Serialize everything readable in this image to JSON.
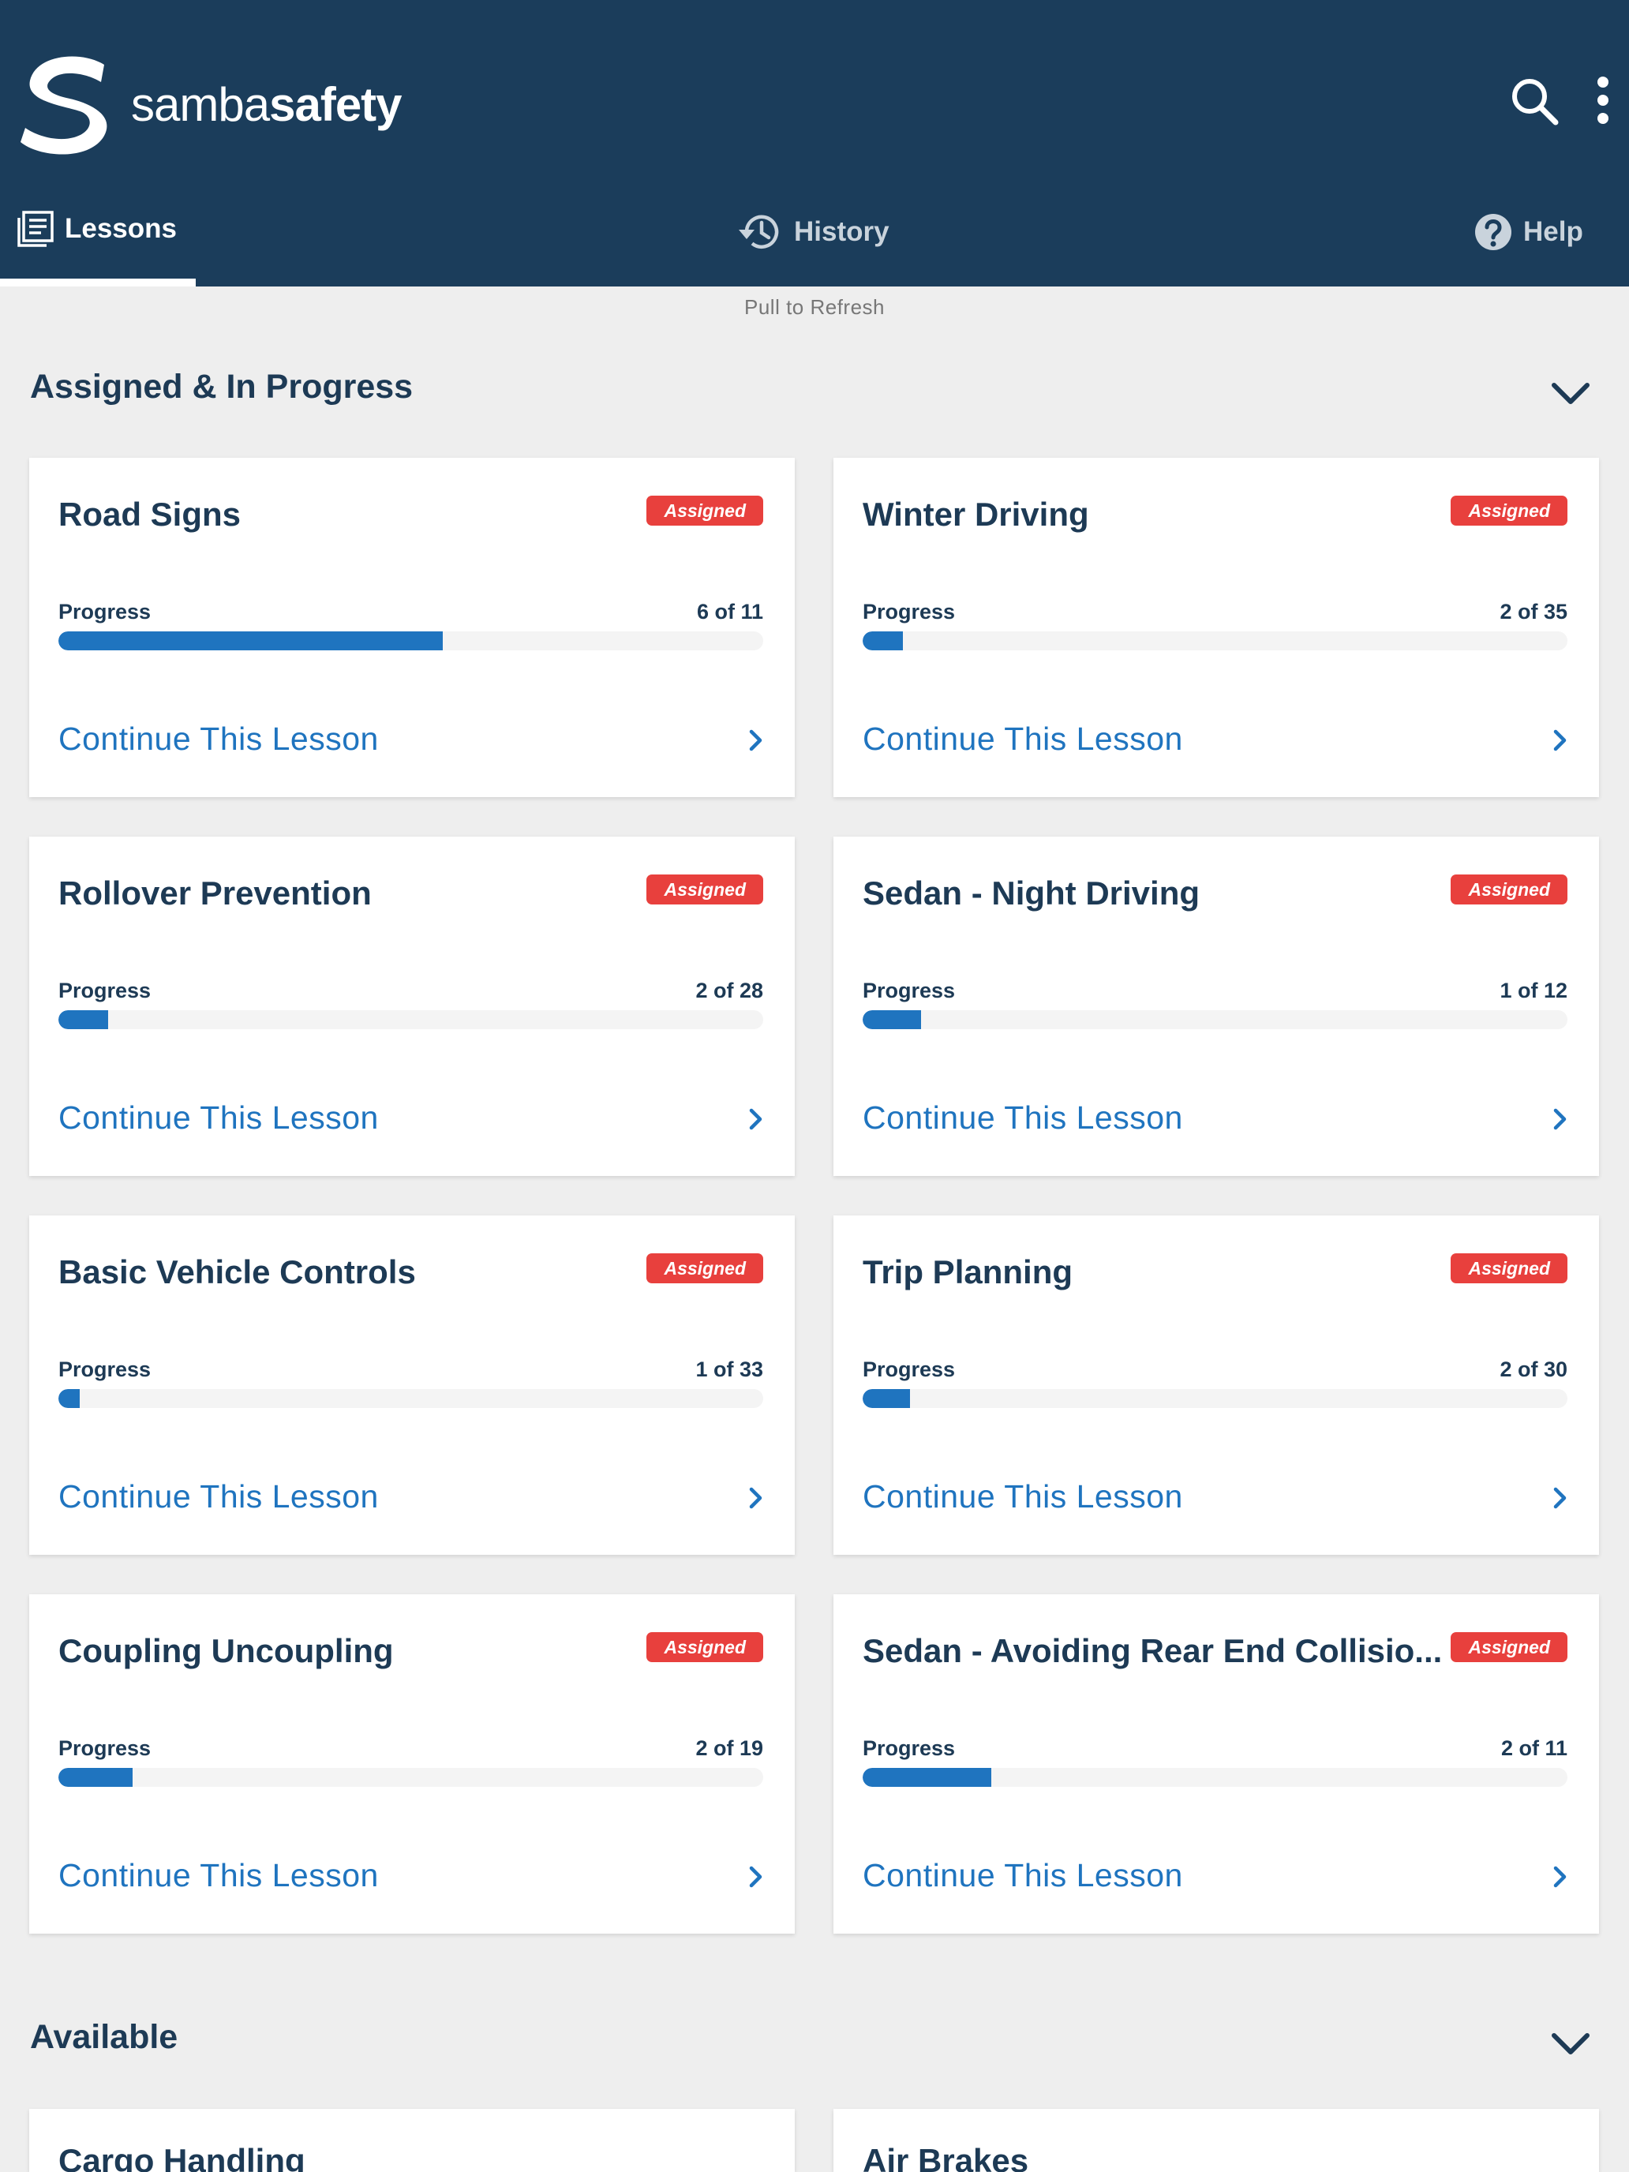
{
  "brand": {
    "name_light": "samba",
    "name_bold": "safety"
  },
  "header": {
    "search_icon": "search-icon",
    "more_icon": "more-vertical-icon"
  },
  "tabs": [
    {
      "label": "Lessons",
      "icon": "lessons-icon",
      "active": true
    },
    {
      "label": "History",
      "icon": "history-icon",
      "active": false
    },
    {
      "label": "Help",
      "icon": "help-icon",
      "active": false
    }
  ],
  "pull_to_refresh": "Pull to Refresh",
  "sections": {
    "assigned": {
      "title": "Assigned & In Progress",
      "lessons": [
        {
          "title": "Road Signs",
          "badge": "Assigned",
          "progress_label": "Progress",
          "progress_text": "6 of 11",
          "progress_fraction": 0.545,
          "action": "Continue This Lesson"
        },
        {
          "title": "Winter Driving",
          "badge": "Assigned",
          "progress_label": "Progress",
          "progress_text": "2 of 35",
          "progress_fraction": 0.057,
          "action": "Continue This Lesson"
        },
        {
          "title": "Rollover Prevention",
          "badge": "Assigned",
          "progress_label": "Progress",
          "progress_text": "2 of 28",
          "progress_fraction": 0.071,
          "action": "Continue This Lesson"
        },
        {
          "title": "Sedan - Night Driving",
          "badge": "Assigned",
          "progress_label": "Progress",
          "progress_text": "1 of 12",
          "progress_fraction": 0.083,
          "action": "Continue This Lesson"
        },
        {
          "title": "Basic Vehicle Controls",
          "badge": "Assigned",
          "progress_label": "Progress",
          "progress_text": "1 of 33",
          "progress_fraction": 0.03,
          "action": "Continue This Lesson"
        },
        {
          "title": "Trip Planning",
          "badge": "Assigned",
          "progress_label": "Progress",
          "progress_text": "2 of 30",
          "progress_fraction": 0.067,
          "action": "Continue This Lesson"
        },
        {
          "title": "Coupling Uncoupling",
          "badge": "Assigned",
          "progress_label": "Progress",
          "progress_text": "2 of 19",
          "progress_fraction": 0.105,
          "action": "Continue This Lesson"
        },
        {
          "title": "Sedan - Avoiding Rear End Collisio...",
          "badge": "Assigned",
          "progress_label": "Progress",
          "progress_text": "2 of 11",
          "progress_fraction": 0.182,
          "action": "Continue This Lesson"
        }
      ]
    },
    "available": {
      "title": "Available",
      "lessons": [
        {
          "title": "Cargo Handling"
        },
        {
          "title": "Air Brakes"
        }
      ]
    }
  },
  "colors": {
    "header_bg": "#1b3d5b",
    "accent_blue": "#1f74bf",
    "badge_red": "#e8403d",
    "title_navy": "#1d3a55",
    "page_bg": "#eeeeee"
  }
}
